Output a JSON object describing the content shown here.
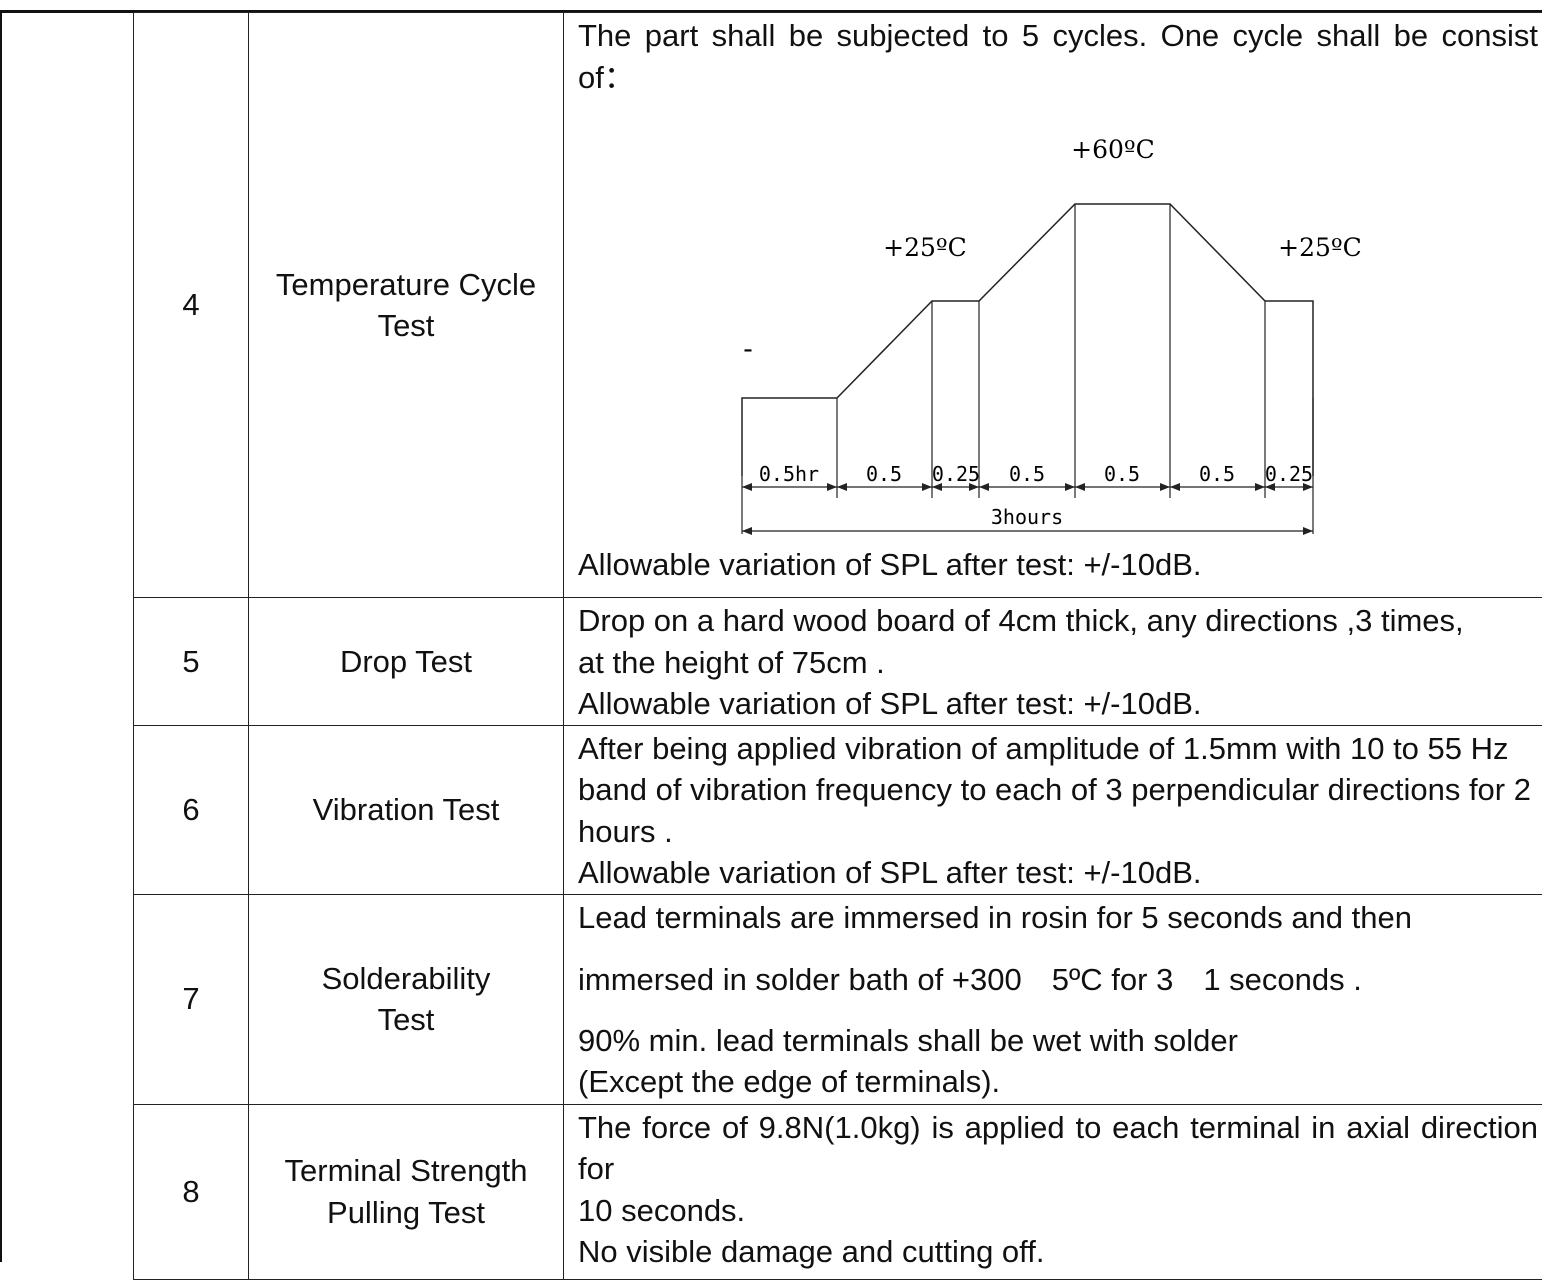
{
  "rows": [
    {
      "num": "4",
      "name": "Temperature Cycle Test",
      "desc_intro": "The part shall be subjected to 5 cycles. One cycle shall be consist of：",
      "diagram": {
        "temp_high": "+60ºC",
        "temp_mid_left": "+25ºC",
        "temp_mid_right": "+25ºC",
        "dash_label": "-",
        "segments": [
          "0.5hr",
          "0.5",
          "0.25",
          "0.5",
          "0.5",
          "0.5",
          "0.25"
        ],
        "total": "3hours"
      },
      "desc_footer": "Allowable variation of SPL after test: +/-10dB."
    },
    {
      "num": "5",
      "name": "Drop Test",
      "lines": [
        "Drop on a hard wood board of 4cm thick, any directions ,3 times,",
        "at the height of 75cm .",
        "Allowable variation of SPL after test: +/-10dB."
      ]
    },
    {
      "num": "6",
      "name": "Vibration Test",
      "para": "After being applied vibration of amplitude of 1.5mm with 10 to 55 Hz band of vibration frequency to each of 3 perpendicular directions for 2 hours .",
      "footer": "Allowable variation of SPL after test: +/-10dB."
    },
    {
      "num": "7",
      "name_line1": "Solderability",
      "name_line2": "Test",
      "line1": "Lead terminals are immersed in rosin for 5 seconds and then",
      "line2a": "immersed in solder bath of +300",
      "line2b": "5ºC for 3",
      "line2c": "1 seconds .",
      "line3": "90% min. lead terminals shall be wet with solder",
      "line4": "(Except the edge of terminals)."
    },
    {
      "num": "8",
      "name_line1": "Terminal Strength",
      "name_line2": "Pulling Test",
      "para": "The force of 9.8N(1.0kg) is applied to each terminal in axial direction for",
      "line2": "10 seconds.",
      "line3": "No visible damage and cutting off."
    }
  ]
}
